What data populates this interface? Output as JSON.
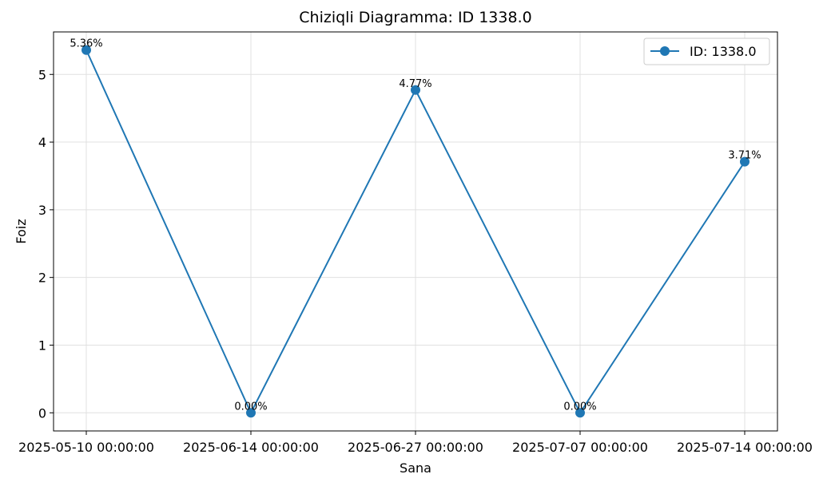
{
  "chart_data": {
    "type": "line",
    "title": "Chiziqli Diagramma: ID 1338.0",
    "xlabel": "Sana",
    "ylabel": "Foiz",
    "categories": [
      "2025-05-10 00:00:00",
      "2025-06-14 00:00:00",
      "2025-06-27 00:00:00",
      "2025-07-07 00:00:00",
      "2025-07-14 00:00:00"
    ],
    "series": [
      {
        "name": "ID: 1338.0",
        "values": [
          5.36,
          0.0,
          4.77,
          0.0,
          3.71
        ],
        "labels": [
          "5.36%",
          "0.00%",
          "4.77%",
          "0.00%",
          "3.71%"
        ],
        "color": "#1f77b4"
      }
    ],
    "yticks": [
      "0",
      "1",
      "2",
      "3",
      "4",
      "5"
    ],
    "ylim": [
      -0.268,
      5.628
    ],
    "grid": true,
    "legend_position": "top-right"
  }
}
